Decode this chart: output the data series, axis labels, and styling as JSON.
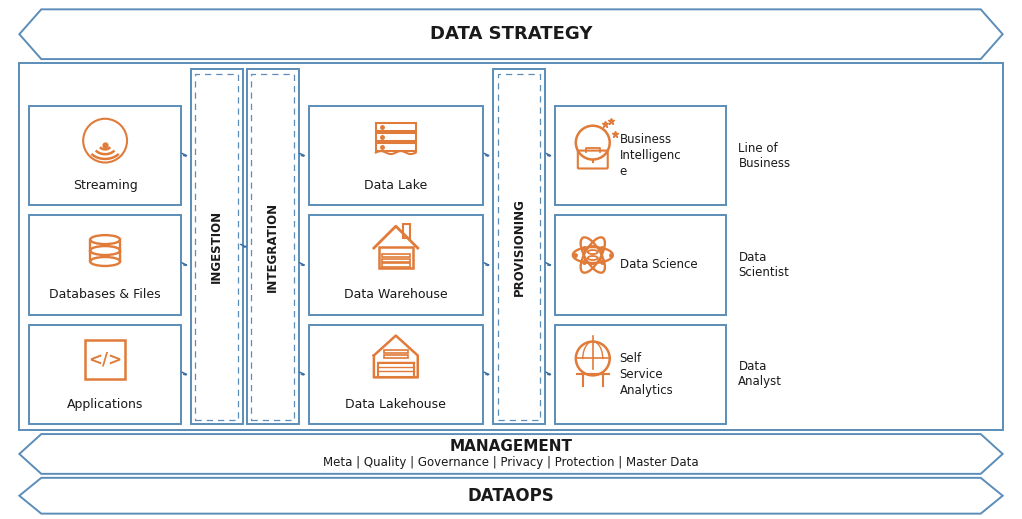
{
  "bg_color": "#ffffff",
  "border_color": "#5b8db8",
  "orange_color": "#e07b39",
  "dark_color": "#1a1a1a",
  "arrow_color": "#3a6ea5",
  "title": "DATA STRATEGY",
  "mgmt_title": "MANAGEMENT",
  "mgmt_sub": "Meta | Quality | Governance | Privacy | Protection | Master Data",
  "dataops_title": "DATAOPS",
  "source_boxes": [
    "Streaming",
    "Databases & Files",
    "Applications"
  ],
  "ingestion_label": "INGESTION",
  "integration_label": "INTEGRATION",
  "storage_boxes": [
    "Data Lake",
    "Data Warehouse",
    "Data Lakehouse"
  ],
  "provisioning_label": "PROVISIONING",
  "output_labels": [
    "Business\nIntelligenc\ne",
    "Data Science",
    "Self\nService\nAnalytics"
  ],
  "audience_labels": [
    "Line of\nBusiness",
    "Data\nScientist",
    "Data\nAnalyst"
  ],
  "figw": 10.22,
  "figh": 5.19,
  "dpi": 100
}
